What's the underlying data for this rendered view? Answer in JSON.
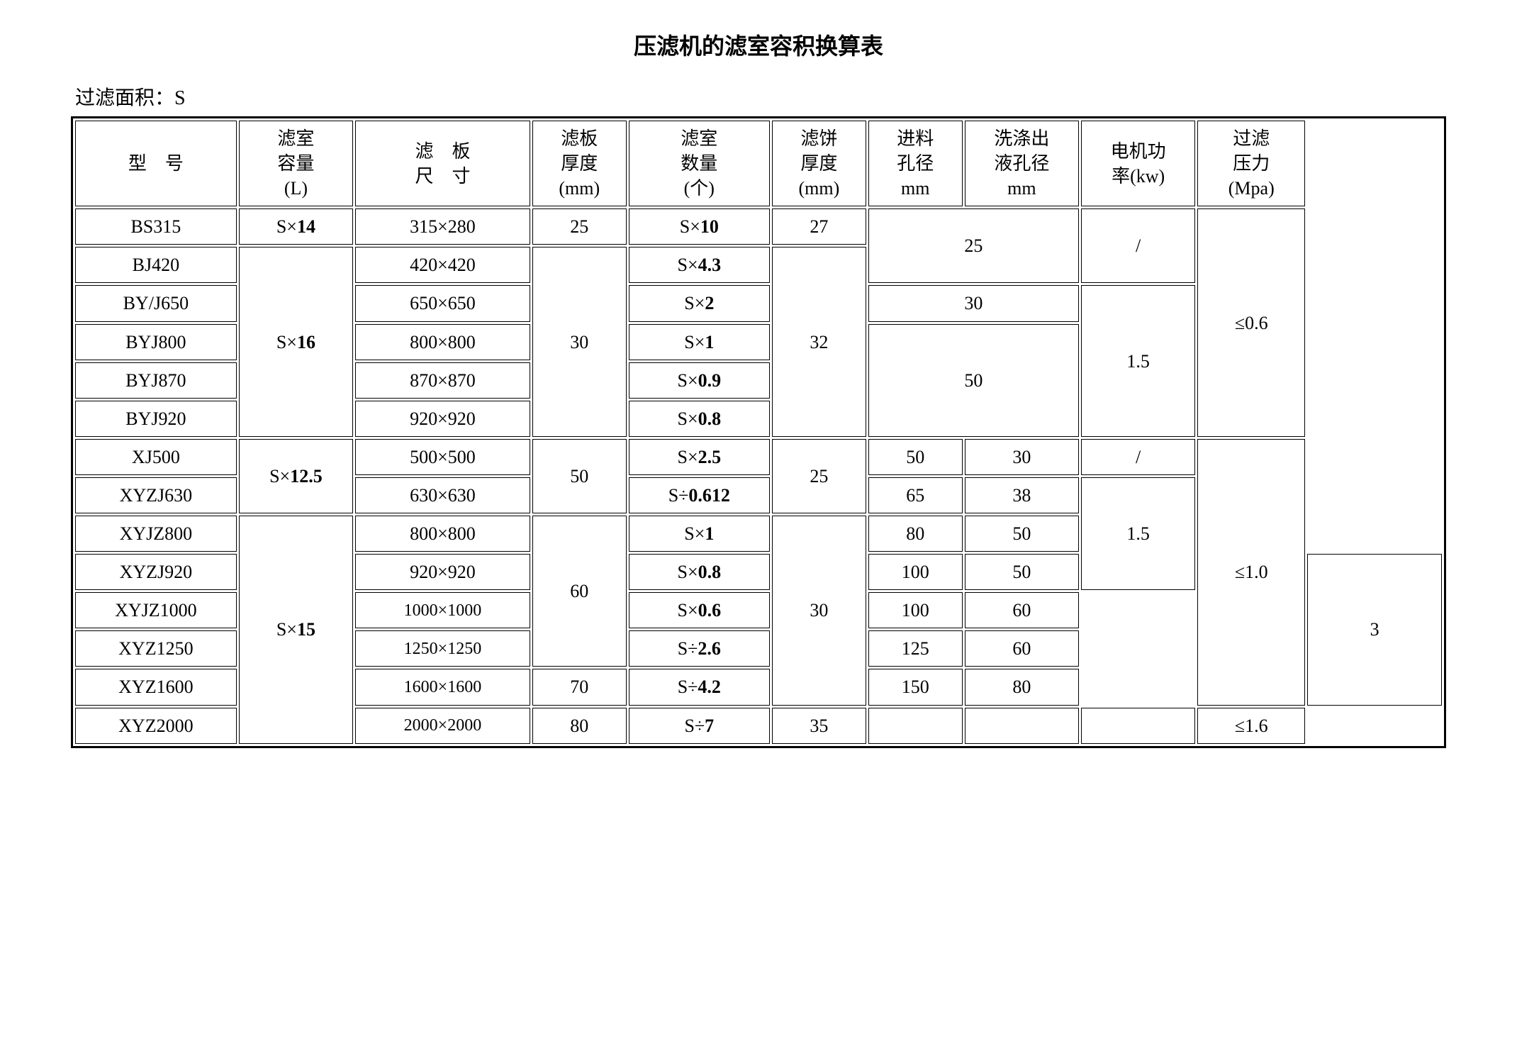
{
  "title": "压滤机的滤室容积换算表",
  "subtitle": "过滤面积：S",
  "headers": {
    "model": "型 号",
    "volume": "滤室\n容量\n(L)",
    "plate_size": "滤 板\n尺 寸",
    "plate_thk": "滤板\n厚度\n(mm)",
    "chamber_num": "滤室\n数量\n(个)",
    "cake_thk": "滤饼\n厚度\n(mm)",
    "inlet": "进料\n孔径\nmm",
    "wash": "洗涤出\n液孔径\nmm",
    "motor": "电机功\n率(kw)",
    "pressure": "过滤\n压力\n(Mpa)"
  },
  "cells": {
    "m1": "BS315",
    "v1p": "S×",
    "v1n": "14",
    "ps1": "315×280",
    "thk1": "25",
    "cn1p": "S×",
    "cn1n": "10",
    "ck1": "27",
    "m2": "BJ420",
    "ps2": "420×420",
    "cn2p": "S×",
    "cn2n": "4.3",
    "m3": "BY/J650",
    "v3p": "S×",
    "v3n": "16",
    "ps3": "650×650",
    "thk3": "30",
    "cn3p": "S×",
    "cn3n": "2",
    "ck3": "32",
    "m4": "BYJ800",
    "ps4": "800×800",
    "cn4p": "S×",
    "cn4n": "1",
    "m5": "BYJ870",
    "ps5": "870×870",
    "cn5p": "S×",
    "cn5n": "0.9",
    "m6": "BYJ920",
    "ps6": "920×920",
    "cn6p": "S×",
    "cn6n": "0.8",
    "m7": "XJ500",
    "v7p": "S×",
    "v7n": "12.5",
    "ps7": "500×500",
    "thk7": "50",
    "cn7p": "S×",
    "cn7n": "2.5",
    "ck7": "25",
    "in7": "50",
    "wa7": "30",
    "mo7": "/",
    "m8": "XYZJ630",
    "ps8": "630×630",
    "cn8p": "S÷",
    "cn8n": "0.612",
    "in8": "65",
    "wa8": "38",
    "m9": "XYJZ800",
    "v9p": "S×",
    "v9n": "15",
    "ps9": "800×800",
    "thk9": "60",
    "cn9p": "S×",
    "cn9n": "1",
    "ck9": "30",
    "in9": "80",
    "wa9": "50",
    "mo9": "1.5",
    "m10": "XYZJ920",
    "ps10": "920×920",
    "cn10p": "S×",
    "cn10n": "0.8",
    "in10": "100",
    "wa10": "50",
    "m11": "XYJZ1000",
    "ps11": "1000×1000",
    "cn11p": "S×",
    "cn11n": "0.6",
    "in11": "100",
    "wa11": "60",
    "m12": "XYZ1250",
    "ps12": "1250×1250",
    "cn12p": "S÷",
    "cn12n": "2.6",
    "in12": "125",
    "wa12": "60",
    "mo12": "3",
    "m13": "XYZ1600",
    "ps13": "1600×1600",
    "thk13": "70",
    "cn13p": "S÷",
    "cn13n": "4.2",
    "in13": "150",
    "wa13": "80",
    "m14": "XYZ2000",
    "ps14": "2000×2000",
    "thk14": "80",
    "cn14p": "S÷",
    "cn14n": "7",
    "ck14": "35",
    "hole_a": "25",
    "hole_b": "30",
    "hole_c": "50",
    "motor_a": "/",
    "motor_b": "1.5",
    "press_a": "≤0.6",
    "press_b": "≤1.0",
    "press_c": "≤1.6"
  }
}
